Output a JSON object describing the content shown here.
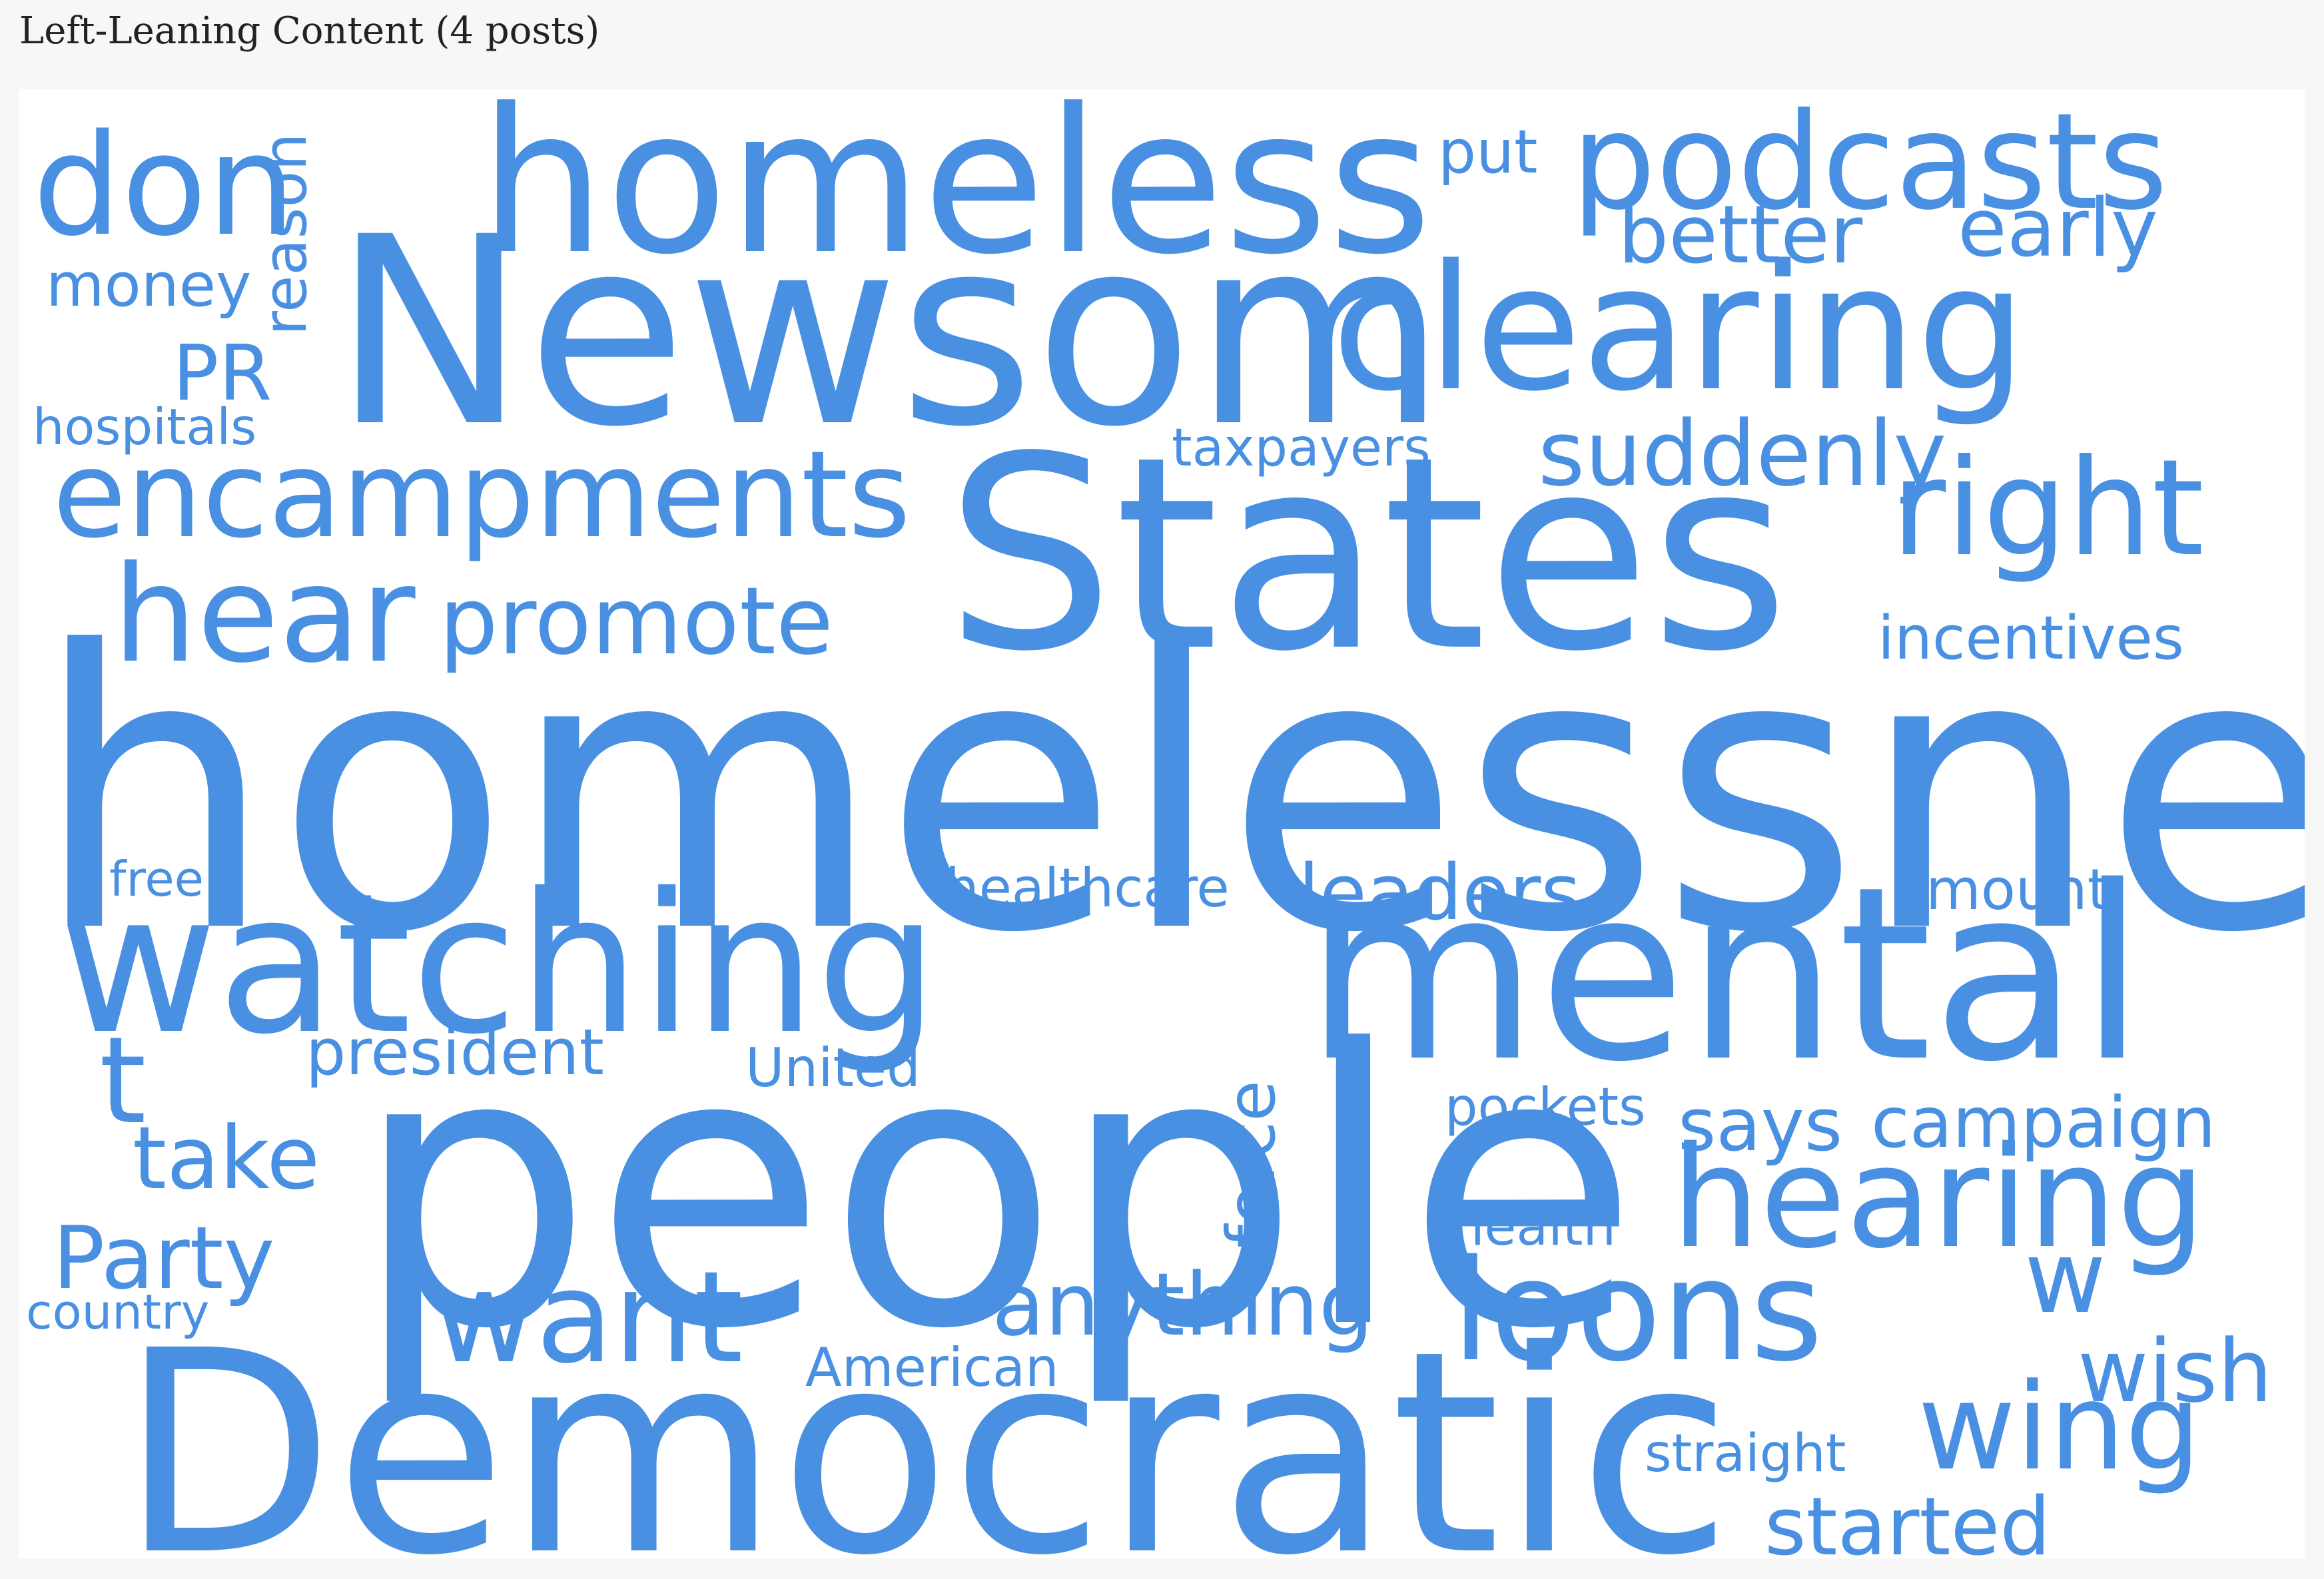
{
  "title": "Left-Leaning Content (4 posts)",
  "colors": {
    "word": "#4a90e2",
    "background": "#ffffff",
    "page": "#f7f7f7"
  },
  "words": [
    "homelessness",
    "Democratic",
    "people",
    "Newsom",
    "States",
    "mental",
    "clearing",
    "homeless",
    "watching",
    "podcasts",
    "encampments",
    "hearing",
    "right",
    "don",
    "hear",
    "loons",
    "want",
    "wing",
    "promote",
    "suddenly",
    "t",
    "better",
    "early",
    "Party",
    "take",
    "anything",
    "started",
    "wish",
    "w",
    "says",
    "campaign",
    "force",
    "leaders",
    "put",
    "PR",
    "incentives",
    "reason",
    "money",
    "president",
    "amount",
    "American",
    "United",
    "healthcare",
    "taxpayers",
    "hospitals",
    "pockets",
    "health",
    "straight",
    "country",
    "free"
  ]
}
